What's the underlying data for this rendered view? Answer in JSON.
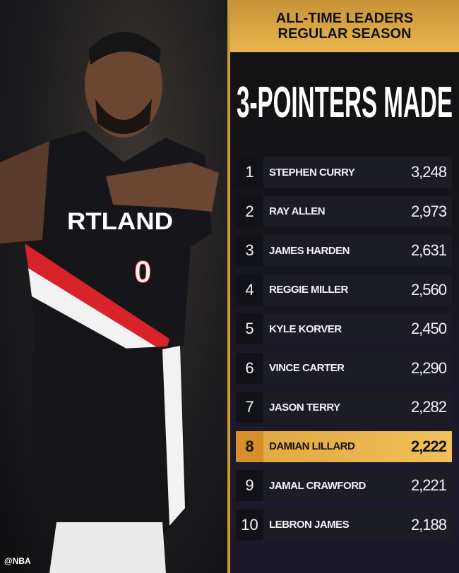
{
  "header": {
    "line1": "ALL-TIME LEADERS",
    "line2": "REGULAR SEASON"
  },
  "title": "3-POINTERS MADE",
  "leaders": [
    {
      "rank": "1",
      "name": "STEPHEN CURRY",
      "value": "3,248"
    },
    {
      "rank": "2",
      "name": "RAY ALLEN",
      "value": "2,973"
    },
    {
      "rank": "3",
      "name": "JAMES HARDEN",
      "value": "2,631"
    },
    {
      "rank": "4",
      "name": "REGGIE MILLER",
      "value": "2,560"
    },
    {
      "rank": "5",
      "name": "KYLE KORVER",
      "value": "2,450"
    },
    {
      "rank": "6",
      "name": "VINCE CARTER",
      "value": "2,290"
    },
    {
      "rank": "7",
      "name": "JASON TERRY",
      "value": "2,282"
    },
    {
      "rank": "8",
      "name": "DAMIAN LILLARD",
      "value": "2,222",
      "highlighted": true
    },
    {
      "rank": "9",
      "name": "JAMAL CRAWFORD",
      "value": "2,221"
    },
    {
      "rank": "10",
      "name": "LEBRON JAMES",
      "value": "2,188"
    }
  ],
  "photo": {
    "jersey_text": "RTLAND",
    "jersey_number": "0"
  },
  "credit": "@NBA",
  "colors": {
    "gold": "#e8b64e",
    "highlight": "#f0c05a",
    "jersey_red": "#d8232a"
  }
}
